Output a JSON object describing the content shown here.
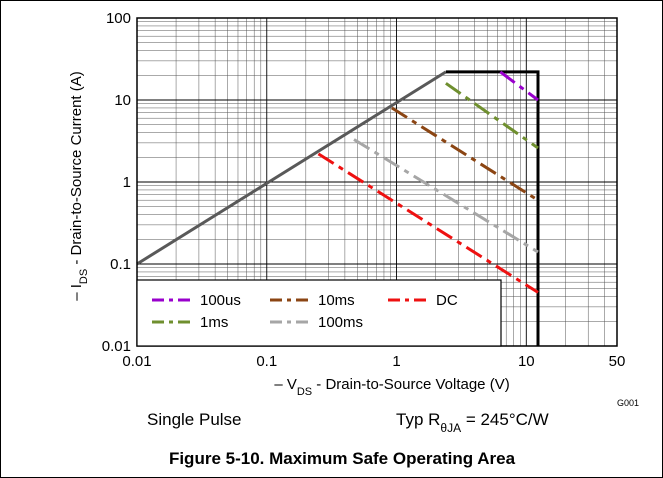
{
  "chart_data": {
    "type": "line",
    "title": "",
    "caption": "Figure 5-10. Maximum Safe Operating Area",
    "xlabel": {
      "prefix": "– V",
      "sub": "DS",
      "rest": " - Drain-to-Source Voltage (V)"
    },
    "ylabel": {
      "prefix": "– I",
      "sub": "DS",
      "rest": " - Drain-to-Source Current (A)"
    },
    "x_scale": "log",
    "y_scale": "log",
    "xlim": [
      0.01,
      50
    ],
    "ylim": [
      0.01,
      100
    ],
    "x_ticks": [
      {
        "value": 0.01,
        "label": "0.01"
      },
      {
        "value": 0.1,
        "label": "0.1"
      },
      {
        "value": 1,
        "label": "1"
      },
      {
        "value": 10,
        "label": "10"
      },
      {
        "value": 50,
        "label": "50"
      }
    ],
    "y_ticks": [
      {
        "value": 0.01,
        "label": "0.01"
      },
      {
        "value": 0.1,
        "label": "0.1"
      },
      {
        "value": 1,
        "label": "1"
      },
      {
        "value": 10,
        "label": "10"
      },
      {
        "value": 100,
        "label": "100"
      }
    ],
    "grid": true,
    "boundary": {
      "color": "#595959",
      "points": [
        [
          0.01,
          0.1
        ],
        [
          2.4,
          22
        ]
      ]
    },
    "limit": {
      "color": "#000000",
      "points": [
        [
          2.4,
          22
        ],
        [
          12.3,
          22
        ],
        [
          12.3,
          0.01
        ]
      ]
    },
    "series": [
      {
        "name": "100us",
        "color": "#9900cc",
        "points": [
          [
            6.3,
            22
          ],
          [
            12.3,
            10
          ]
        ]
      },
      {
        "name": "1ms",
        "color": "#6f8f2f",
        "points": [
          [
            2.4,
            16
          ],
          [
            12.3,
            2.6
          ]
        ]
      },
      {
        "name": "10ms",
        "color": "#8b4513",
        "points": [
          [
            0.92,
            8
          ],
          [
            12.3,
            0.6
          ]
        ]
      },
      {
        "name": "100ms",
        "color": "#a6a6a6",
        "points": [
          [
            0.47,
            3.3
          ],
          [
            12.3,
            0.14
          ]
        ]
      },
      {
        "name": "DC",
        "color": "#ee1111",
        "points": [
          [
            0.25,
            2.2
          ],
          [
            12.3,
            0.045
          ]
        ]
      }
    ],
    "legend": {
      "placement": "bottom-left",
      "rows": [
        [
          "100us",
          "10ms",
          "DC"
        ],
        [
          "1ms",
          "100ms"
        ]
      ]
    },
    "figure_code": "G001"
  },
  "notes": {
    "single_pulse": "Single Pulse",
    "typ_prefix": "Typ R",
    "typ_sub": "θJA",
    "typ_value": " = 245°C/W"
  }
}
